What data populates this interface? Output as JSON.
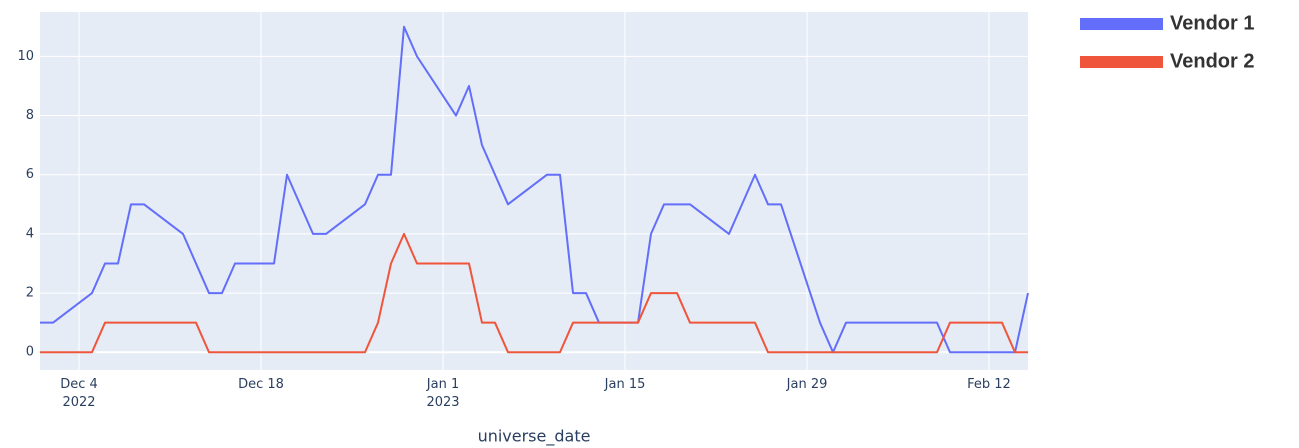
{
  "chart_data": {
    "type": "line",
    "xlabel": "universe_date",
    "xlim": [
      "2022-12-01",
      "2023-02-15"
    ],
    "xticks": [
      {
        "value": "2022-12-04",
        "label": "Dec 4\n2022"
      },
      {
        "value": "2022-12-18",
        "label": "Dec 18"
      },
      {
        "value": "2023-01-01",
        "label": "Jan 1\n2023"
      },
      {
        "value": "2023-01-15",
        "label": "Jan 15"
      },
      {
        "value": "2023-01-29",
        "label": "Jan 29"
      },
      {
        "value": "2023-02-12",
        "label": "Feb 12"
      }
    ],
    "ylim": [
      -0.6,
      11.5
    ],
    "yticks": [
      0,
      2,
      4,
      6,
      8,
      10
    ],
    "grid": true,
    "legend": "top-right",
    "series": [
      {
        "name": "Vendor 1",
        "color": "#636efa",
        "x": [
          "2022-12-01",
          "2022-12-02",
          "2022-12-05",
          "2022-12-06",
          "2022-12-07",
          "2022-12-08",
          "2022-12-09",
          "2022-12-12",
          "2022-12-14",
          "2022-12-15",
          "2022-12-16",
          "2022-12-19",
          "2022-12-20",
          "2022-12-22",
          "2022-12-23",
          "2022-12-26",
          "2022-12-27",
          "2022-12-28",
          "2022-12-29",
          "2022-12-30",
          "2023-01-02",
          "2023-01-03",
          "2023-01-04",
          "2023-01-06",
          "2023-01-09",
          "2023-01-10",
          "2023-01-11",
          "2023-01-12",
          "2023-01-13",
          "2023-01-16",
          "2023-01-17",
          "2023-01-18",
          "2023-01-20",
          "2023-01-23",
          "2023-01-25",
          "2023-01-26",
          "2023-01-27",
          "2023-01-30",
          "2023-01-31",
          "2023-02-01",
          "2023-02-08",
          "2023-02-09",
          "2023-02-14",
          "2023-02-15"
        ],
        "values": [
          1,
          1,
          2,
          3,
          3,
          5,
          5,
          4,
          2,
          2,
          3,
          3,
          6,
          4,
          4,
          5,
          6,
          6,
          11,
          10,
          8,
          9,
          7,
          5,
          6,
          6,
          2,
          2,
          1,
          1,
          4,
          5,
          5,
          4,
          6,
          5,
          5,
          1,
          0,
          1,
          1,
          0,
          0,
          2
        ]
      },
      {
        "name": "Vendor 2",
        "color": "#ef553b",
        "x": [
          "2022-12-01",
          "2022-12-05",
          "2022-12-06",
          "2022-12-13",
          "2022-12-14",
          "2022-12-26",
          "2022-12-27",
          "2022-12-28",
          "2022-12-29",
          "2022-12-30",
          "2023-01-03",
          "2023-01-04",
          "2023-01-05",
          "2023-01-06",
          "2023-01-10",
          "2023-01-11",
          "2023-01-16",
          "2023-01-17",
          "2023-01-19",
          "2023-01-20",
          "2023-01-25",
          "2023-01-26",
          "2023-02-08",
          "2023-02-09",
          "2023-02-13",
          "2023-02-14",
          "2023-02-15"
        ],
        "values": [
          0,
          0,
          1,
          1,
          0,
          0,
          1,
          3,
          4,
          3,
          3,
          1,
          1,
          0,
          0,
          1,
          1,
          2,
          2,
          1,
          1,
          0,
          0,
          1,
          1,
          0,
          0
        ]
      }
    ]
  }
}
